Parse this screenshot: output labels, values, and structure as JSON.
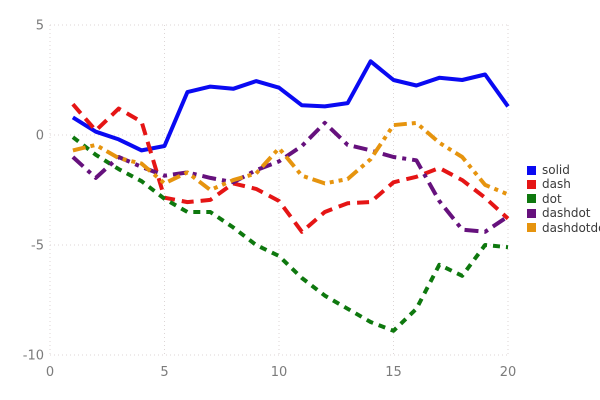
{
  "chart_data": {
    "type": "line",
    "title": "",
    "xlabel": "",
    "ylabel": "",
    "grid": true,
    "legend_position": "right",
    "xlim": [
      0,
      20
    ],
    "ylim": [
      -10,
      5
    ],
    "x_ticks": [
      0,
      5,
      10,
      15,
      20
    ],
    "y_ticks": [
      5,
      0,
      -5,
      -10
    ],
    "x": [
      1,
      2,
      3,
      4,
      5,
      6,
      7,
      8,
      9,
      10,
      11,
      12,
      13,
      14,
      15,
      16,
      17,
      18,
      19,
      20
    ],
    "series": [
      {
        "name": "solid",
        "color": "#0a0af2",
        "style": "solid",
        "values": [
          0.8,
          0.15,
          -0.2,
          -0.7,
          -0.5,
          1.95,
          2.2,
          2.1,
          2.45,
          2.15,
          1.35,
          1.3,
          1.45,
          3.35,
          2.5,
          2.25,
          2.6,
          2.5,
          2.75,
          1.3
        ]
      },
      {
        "name": "dash",
        "color": "#e51515",
        "style": "dash",
        "values": [
          1.4,
          0.2,
          1.2,
          0.6,
          -2.85,
          -3.05,
          -2.95,
          -2.2,
          -2.45,
          -3.0,
          -4.4,
          -3.5,
          -3.1,
          -3.05,
          -2.15,
          -1.9,
          -1.5,
          -2.05,
          -2.85,
          -3.8
        ]
      },
      {
        "name": "dot",
        "color": "#0e780e",
        "style": "dot",
        "values": [
          -0.1,
          -0.9,
          -1.55,
          -2.1,
          -2.9,
          -3.5,
          -3.5,
          -4.2,
          -5.0,
          -5.5,
          -6.5,
          -7.3,
          -7.9,
          -8.5,
          -8.9,
          -7.9,
          -5.9,
          -6.4,
          -5.0,
          -5.1
        ]
      },
      {
        "name": "dashdot",
        "color": "#66117d",
        "style": "dashdot",
        "values": [
          -1.0,
          -1.95,
          -1.0,
          -1.45,
          -1.85,
          -1.7,
          -1.95,
          -2.15,
          -1.6,
          -1.2,
          -0.5,
          0.55,
          -0.45,
          -0.7,
          -1.0,
          -1.15,
          -3.0,
          -4.3,
          -4.4,
          -3.7
        ]
      },
      {
        "name": "dashdotdot",
        "color": "#e6940e",
        "style": "dashdotdot",
        "values": [
          -0.7,
          -0.45,
          -1.05,
          -1.3,
          -2.2,
          -1.7,
          -2.5,
          -2.05,
          -1.75,
          -0.6,
          -1.85,
          -2.2,
          -2.0,
          -1.1,
          0.45,
          0.55,
          -0.35,
          -1.0,
          -2.27,
          -2.7
        ]
      }
    ]
  },
  "style": {
    "grid_color": "#dcd6d6",
    "tick_color": "#7b7b7b",
    "legend_text_color": "#3a3a3a",
    "background": "#ffffff"
  }
}
